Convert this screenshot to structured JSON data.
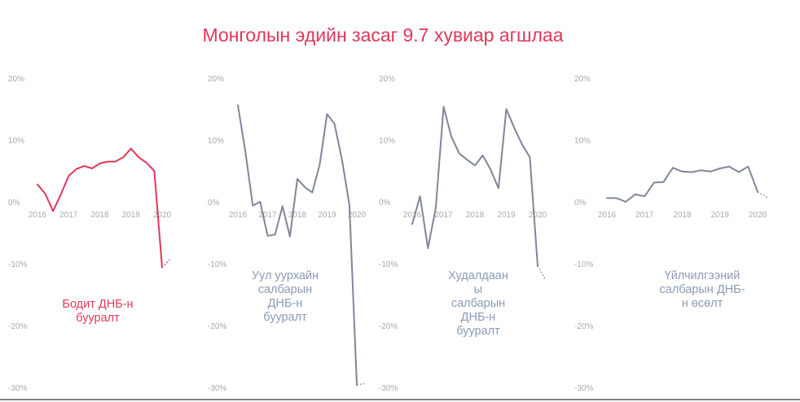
{
  "title": "Монголын эдийн засаг 9.7 хувиар агшлаа",
  "colors": {
    "title": "#e0375a",
    "accent": "#e0375a",
    "series": "#7f8699",
    "label_gray": "#8a9bb5",
    "tick": "#a9a9a9"
  },
  "chart_data": [
    {
      "type": "line",
      "label": "Бодит ДНБ-н бууралт",
      "label_lines": [
        "Бодит ДНБ-н",
        "бууралт"
      ],
      "color": "#e0375a",
      "ylim": [
        -30,
        20
      ],
      "yticks": [
        "20%",
        "10%",
        "0%",
        "-10%",
        "-20%",
        "-30%"
      ],
      "xticks": [
        "2016",
        "2017",
        "2018",
        "2019",
        "2020"
      ],
      "x": [
        2016.0,
        2016.25,
        2016.5,
        2016.75,
        2017.0,
        2017.25,
        2017.5,
        2017.75,
        2018.0,
        2018.25,
        2018.5,
        2018.75,
        2019.0,
        2019.25,
        2019.5,
        2019.75,
        2020.0
      ],
      "values": [
        2.8,
        1.3,
        -1.5,
        1.2,
        4.2,
        5.3,
        5.8,
        5.4,
        6.2,
        6.5,
        6.5,
        7.2,
        8.6,
        7.2,
        6.3,
        5.0,
        -10.6
      ],
      "projection": {
        "x": [
          2020.0,
          2020.25
        ],
        "values": [
          -10.6,
          -9.3
        ]
      }
    },
    {
      "type": "line",
      "label": "Уул уурхайн салбарын ДНБ-н бууралт",
      "label_lines": [
        "Уул уурхайн",
        "салбарын",
        "ДНБ-н",
        "бууралт"
      ],
      "color": "#7f8699",
      "ylim": [
        -30,
        20
      ],
      "yticks": [
        "20%",
        "10%",
        "0%",
        "-10%",
        "-20%",
        "-30%"
      ],
      "xticks": [
        "2016",
        "2017",
        "2018",
        "2019",
        "2020"
      ],
      "x": [
        2016.0,
        2016.25,
        2016.5,
        2016.75,
        2017.0,
        2017.25,
        2017.5,
        2017.75,
        2018.0,
        2018.25,
        2018.5,
        2018.75,
        2019.0,
        2019.25,
        2019.5,
        2019.75,
        2020.0
      ],
      "values": [
        15.6,
        8.2,
        -0.6,
        0.0,
        -5.5,
        -5.3,
        -0.7,
        -5.6,
        3.7,
        2.4,
        1.5,
        6.0,
        14.2,
        12.6,
        6.8,
        -0.5,
        -29.6
      ],
      "projection": {
        "x": [
          2020.0,
          2020.25
        ],
        "values": [
          -29.6,
          -29.4
        ]
      }
    },
    {
      "type": "line",
      "label": "Худалдааны салбарын ДНБ-н бууралт",
      "label_lines": [
        "Худалдаан",
        "ы",
        "салбарын",
        "ДНБ-н",
        "бууралт"
      ],
      "color": "#7f8699",
      "ylim": [
        -30,
        20
      ],
      "yticks": [
        "20%",
        "10%",
        "0%",
        "-10%",
        "-20%",
        "-30%"
      ],
      "xticks": [
        "2016",
        "2017",
        "2018",
        "2019",
        "2020"
      ],
      "x": [
        2016.0,
        2016.25,
        2016.5,
        2016.75,
        2017.0,
        2017.25,
        2017.5,
        2017.75,
        2018.0,
        2018.25,
        2018.5,
        2018.75,
        2019.0,
        2019.25,
        2019.5,
        2019.75,
        2020.0
      ],
      "values": [
        -3.6,
        0.9,
        -7.5,
        -1.0,
        15.4,
        10.5,
        7.8,
        6.8,
        5.9,
        7.5,
        5.2,
        2.2,
        15.0,
        12.0,
        9.3,
        7.2,
        -10.4
      ],
      "projection": {
        "x": [
          2020.0,
          2020.25
        ],
        "values": [
          -10.4,
          -12.6
        ]
      }
    },
    {
      "type": "line",
      "label": "Үйлчилгээний салбарын ДНБ-н өсөлт",
      "label_lines": [
        "Үйлчилгээний",
        "салбарын ДНБ-",
        "н өсөлт"
      ],
      "color": "#7f8699",
      "ylim": [
        -30,
        20
      ],
      "yticks": [
        "20%",
        "10%",
        "0%",
        "-10%",
        "-20%",
        "-30%"
      ],
      "xticks": [
        "2016",
        "2017",
        "2018",
        "2019",
        "2020"
      ],
      "x": [
        2016.0,
        2016.25,
        2016.5,
        2016.75,
        2017.0,
        2017.25,
        2017.5,
        2017.75,
        2018.0,
        2018.25,
        2018.5,
        2018.75,
        2019.0,
        2019.25,
        2019.5,
        2019.75,
        2020.0
      ],
      "values": [
        0.6,
        0.6,
        0.0,
        1.2,
        0.9,
        3.1,
        3.2,
        5.5,
        4.9,
        4.8,
        5.1,
        4.9,
        5.4,
        5.7,
        4.8,
        5.7,
        1.6
      ],
      "projection": {
        "x": [
          2020.0,
          2020.25
        ],
        "values": [
          1.6,
          0.7
        ]
      }
    }
  ]
}
